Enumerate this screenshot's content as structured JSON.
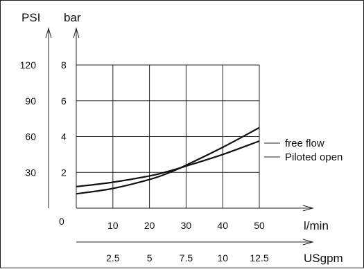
{
  "chart_data": {
    "type": "line",
    "x_label": "l/min",
    "x_secondary_label": "USgpm",
    "y_label": "bar",
    "y_secondary_label": "PSI",
    "x_ticks": [
      "10",
      "20",
      "30",
      "40",
      "50"
    ],
    "x_secondary_ticks": [
      "2.5",
      "5",
      "7.5",
      "10",
      "12.5"
    ],
    "y_ticks": [
      "2",
      "4",
      "6",
      "8"
    ],
    "y_secondary_ticks": [
      "30",
      "60",
      "90",
      "120"
    ],
    "origin_label": "0",
    "xlim": [
      0,
      50
    ],
    "ylim": [
      0,
      8
    ],
    "grid": true,
    "series": [
      {
        "name": "free flow",
        "x": [
          0,
          10,
          20,
          25,
          30,
          40,
          50
        ],
        "y": [
          0.8,
          1.1,
          1.6,
          1.95,
          2.4,
          3.4,
          4.5
        ]
      },
      {
        "name": "Piloted open",
        "x": [
          0,
          10,
          20,
          25,
          30,
          40,
          50
        ],
        "y": [
          1.2,
          1.45,
          1.8,
          2.05,
          2.35,
          3.0,
          3.75
        ]
      }
    ]
  }
}
